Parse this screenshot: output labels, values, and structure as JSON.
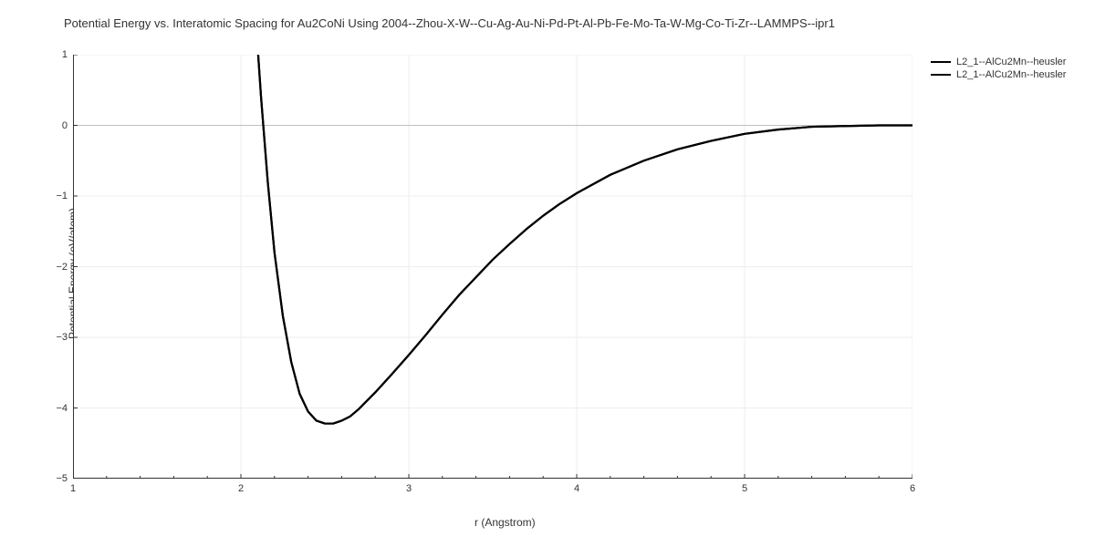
{
  "chart": {
    "type": "line",
    "title": "Potential Energy vs. Interatomic Spacing for Au2CoNi Using 2004--Zhou-X-W--Cu-Ag-Au-Ni-Pd-Pt-Al-Pb-Fe-Mo-Ta-W-Mg-Co-Ti-Zr--LAMMPS--ipr1",
    "title_fontsize": 13,
    "title_color": "#333333",
    "xlabel": "r (Angstrom)",
    "ylabel": "Potential Energy (eV/atom)",
    "label_fontsize": 12,
    "label_color": "#333333",
    "xlim": [
      1,
      6
    ],
    "ylim": [
      -5,
      1
    ],
    "xticks": [
      1,
      2,
      3,
      4,
      5,
      6
    ],
    "yticks": [
      -5,
      -4,
      -3,
      -2,
      -1,
      0,
      1
    ],
    "background_color": "#ffffff",
    "grid_color": "#eeeeee",
    "zero_line_color": "#bfbfbf",
    "axis_color": "#333333",
    "tick_fontsize": 11,
    "line_color": "#000000",
    "line_width": 2.2,
    "x_minor_ticks": 4,
    "legend": {
      "position": "right",
      "items": [
        {
          "label": "L2_1--AlCu2Mn--heusler",
          "color": "#000000"
        },
        {
          "label": "L2_1--AlCu2Mn--heusler",
          "color": "#000000"
        }
      ],
      "fontsize": 11
    },
    "series": [
      {
        "name": "L2_1--AlCu2Mn--heusler",
        "color": "#000000",
        "width": 2.2,
        "x": [
          2.05,
          2.08,
          2.12,
          2.16,
          2.2,
          2.25,
          2.3,
          2.35,
          2.4,
          2.45,
          2.5,
          2.55,
          2.6,
          2.65,
          2.7,
          2.8,
          2.9,
          3.0,
          3.1,
          3.2,
          3.3,
          3.4,
          3.5,
          3.6,
          3.7,
          3.8,
          3.9,
          4.0,
          4.2,
          4.4,
          4.6,
          4.8,
          5.0,
          5.2,
          5.4,
          5.6,
          5.8,
          6.0
        ],
        "y": [
          3.2,
          1.8,
          0.4,
          -0.8,
          -1.8,
          -2.7,
          -3.35,
          -3.8,
          -4.05,
          -4.18,
          -4.22,
          -4.22,
          -4.18,
          -4.12,
          -4.02,
          -3.78,
          -3.52,
          -3.25,
          -2.97,
          -2.68,
          -2.4,
          -2.15,
          -1.9,
          -1.68,
          -1.47,
          -1.28,
          -1.11,
          -0.96,
          -0.7,
          -0.5,
          -0.34,
          -0.22,
          -0.12,
          -0.06,
          -0.02,
          -0.01,
          0.0,
          0.0
        ]
      },
      {
        "name": "L2_1--AlCu2Mn--heusler",
        "color": "#000000",
        "width": 2.2,
        "x": [
          2.05,
          2.08,
          2.12,
          2.16,
          2.2,
          2.25,
          2.3,
          2.35,
          2.4,
          2.45,
          2.5,
          2.55,
          2.6,
          2.65,
          2.7,
          2.8,
          2.9,
          3.0,
          3.1,
          3.2,
          3.3,
          3.4,
          3.5,
          3.6,
          3.7,
          3.8,
          3.9,
          4.0,
          4.2,
          4.4,
          4.6,
          4.8,
          5.0,
          5.2,
          5.4,
          5.6,
          5.8,
          6.0
        ],
        "y": [
          3.2,
          1.8,
          0.4,
          -0.8,
          -1.8,
          -2.7,
          -3.35,
          -3.8,
          -4.05,
          -4.18,
          -4.22,
          -4.22,
          -4.18,
          -4.12,
          -4.02,
          -3.78,
          -3.52,
          -3.25,
          -2.97,
          -2.68,
          -2.4,
          -2.15,
          -1.9,
          -1.68,
          -1.47,
          -1.28,
          -1.11,
          -0.96,
          -0.7,
          -0.5,
          -0.34,
          -0.22,
          -0.12,
          -0.06,
          -0.02,
          -0.01,
          0.0,
          0.0
        ]
      }
    ]
  }
}
